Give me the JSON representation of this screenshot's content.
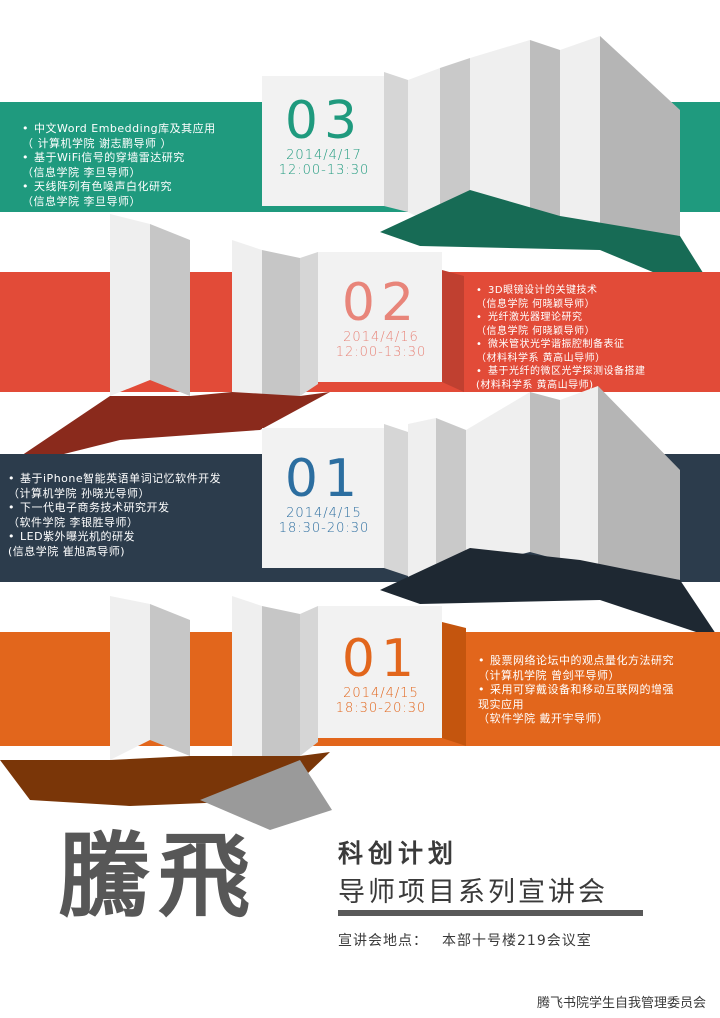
{
  "colors": {
    "teal": "#1f9a7e",
    "red": "#e24b38",
    "navy": "#2c3c4c",
    "orange": "#e2661c",
    "teal_dark": "#176b55",
    "red_dark": "#8a2a1c",
    "navy_dark": "#1e2832",
    "orange_dark": "#7a3608",
    "panel_light": "#efefef",
    "panel_mid": "#c9c9c9",
    "shadow": "#9a9a9a",
    "title_gray": "#575757"
  },
  "sessions": [
    {
      "number": "03",
      "date": "2014/4/17",
      "time": "12:00-13:30",
      "accent": "#1f9a7e",
      "items": [
        {
          "title": "中文Word Embedding库及其应用",
          "detail": "（ 计算机学院   谢志鹏导师 ）"
        },
        {
          "title": "基于WiFi信号的穿墙雷达研究",
          "detail": "（信息学院  李旦导师）"
        },
        {
          "title": "天线阵列有色噪声白化研究",
          "detail": "（信息学院  李旦导师）"
        }
      ]
    },
    {
      "number": "02",
      "date": "2014/4/16",
      "time": "12:00-13:30",
      "accent": "#e8857a",
      "items": [
        {
          "title": "3D眼镜设计的关键技术",
          "detail": "（信息学院 何晓颖导师）"
        },
        {
          "title": "光纤激光器理论研究",
          "detail": "（信息学院 何晓颖导师）"
        },
        {
          "title": "微米管状光学谐振腔制备表征",
          "detail": "（材料科学系  黄高山导师）"
        },
        {
          "title": "基于光纤的微区光学探测设备搭建",
          "detail": "(材料科学系  黄高山导师)"
        }
      ]
    },
    {
      "number": "01",
      "date": "2014/4/15",
      "time": "18:30-20:30",
      "accent": "#2c6ea0",
      "items": [
        {
          "title": "基于iPhone智能英语单词记忆软件开发",
          "detail": "（计算机学院  孙晓光导师）"
        },
        {
          "title": "下一代电子商务技术研究开发",
          "detail": "（软件学院  李银胜导师）"
        },
        {
          "title": "LED紫外曝光机的研发",
          "detail": "(信息学院  崔旭高导师)"
        }
      ]
    },
    {
      "number": "01",
      "date": "2014/4/15",
      "time": "18:30-20:30",
      "accent": "#e2661c",
      "items": [
        {
          "title": "股票网络论坛中的观点量化方法研究",
          "detail": "（计算机学院  曾剑平导师）"
        },
        {
          "title": "采用可穿戴设备和移动互联网的增强",
          "detail": "现实应用"
        },
        {
          "title": "",
          "detail": "（软件学院  戴开宇导师）"
        }
      ]
    }
  ],
  "title": {
    "main": "騰飛",
    "sub1": "科创计划",
    "sub2": "导师项目系列宣讲会"
  },
  "venue": {
    "label": "宣讲会地点：",
    "value": "本部十号楼219会议室"
  },
  "organizer": "腾飞书院学生自我管理委员会"
}
